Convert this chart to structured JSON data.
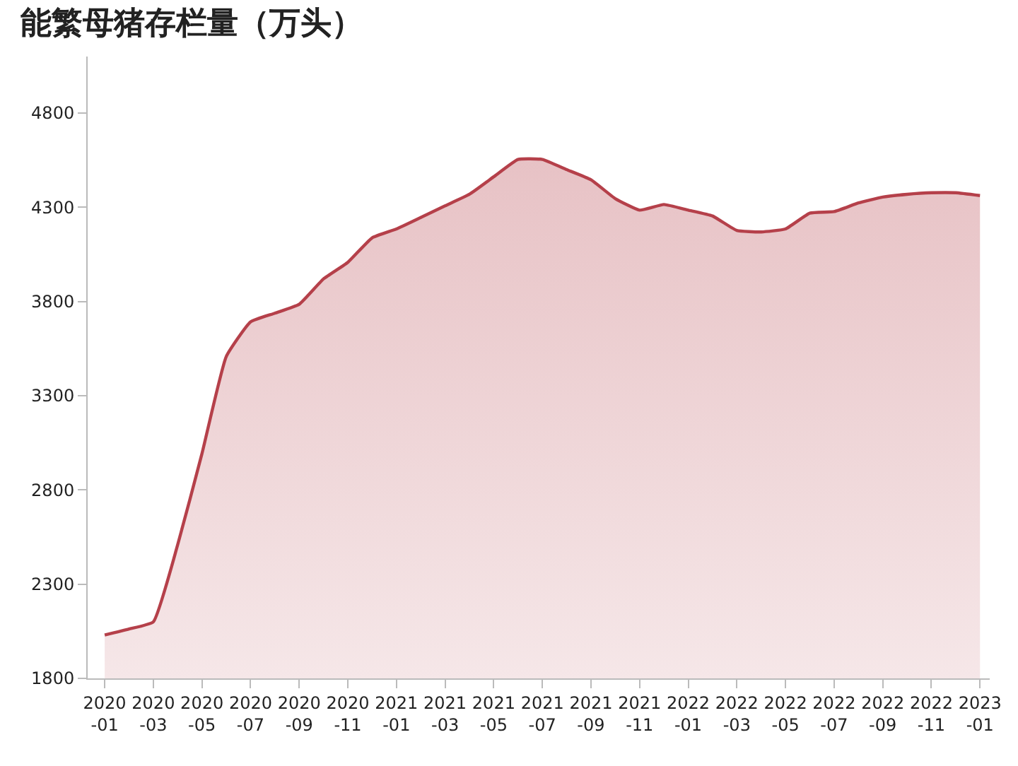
{
  "chart_data": {
    "type": "area",
    "title": "能繁母猪存栏量（万头）",
    "categories": [
      "2020-01",
      null,
      "2020-03",
      null,
      "2020-05",
      null,
      "2020-07",
      null,
      "2020-09",
      null,
      "2020-11",
      null,
      "2021-01",
      null,
      "2021-03",
      null,
      "2021-05",
      null,
      "2021-07",
      null,
      "2021-09",
      null,
      "2021-11",
      null,
      "2022-01",
      null,
      "2022-03",
      null,
      "2022-05",
      null,
      "2022-07",
      null,
      "2022-09",
      null,
      "2022-11",
      null,
      "2023-01"
    ],
    "series": [
      {
        "color": "#b5404a",
        "values": [
          2030,
          2062,
          2100,
          2508,
          2992,
          3508,
          3692,
          3738,
          3785,
          3920,
          4008,
          4138,
          4185,
          4246,
          4308,
          4369,
          4462,
          4554,
          4554,
          4500,
          4446,
          4346,
          4285,
          4315,
          4285,
          4254,
          4177,
          4169,
          4185,
          4269,
          4277,
          4323,
          4354,
          4369,
          4377,
          4377,
          4362
        ]
      }
    ],
    "ylim": [
      1800,
      5100
    ],
    "yticks": [
      1800,
      2300,
      2800,
      3300,
      3800,
      4300,
      4800
    ]
  }
}
